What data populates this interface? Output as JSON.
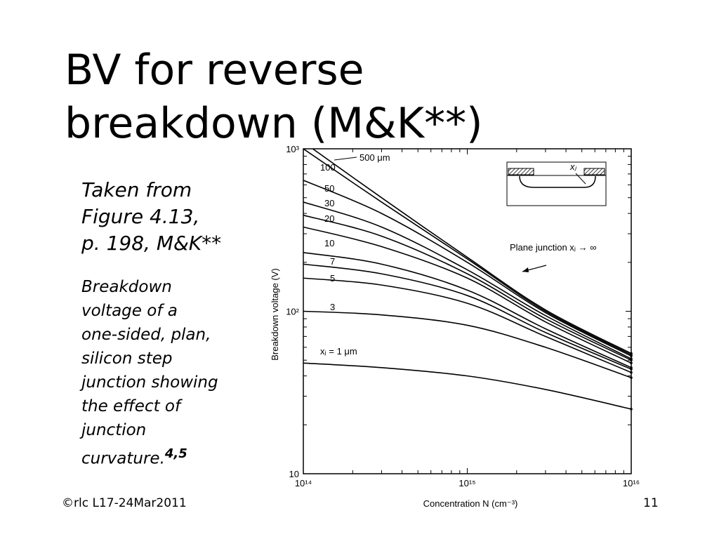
{
  "slide": {
    "title_lines": [
      "BV for reverse",
      "breakdown (M&K**)"
    ],
    "source_lines": [
      "Taken from",
      "Figure 4.13,",
      "p. 198, M&K**"
    ],
    "caption_lines": [
      "Breakdown",
      "voltage of a",
      "one-sided, plan,",
      "silicon step",
      "junction showing",
      "the effect of",
      "junction",
      "curvature."
    ],
    "caption_refs": "4,5",
    "footer_left": "©rlc L17-24Mar2011",
    "page_number": "11"
  },
  "chart_data": {
    "type": "line",
    "xlabel": "Concentration N (cm⁻³)",
    "ylabel": "Breakdown voltage (V)",
    "x_scale": "log",
    "y_scale": "log",
    "xlim": [
      100000000000000.0,
      1e+16
    ],
    "ylim": [
      10,
      1000
    ],
    "x_ticks": [
      "10¹⁴",
      "10¹⁵",
      "10¹⁶"
    ],
    "y_ticks": [
      "10",
      "10²",
      "10³"
    ],
    "x": [
      100000000000000.0,
      300000000000000.0,
      1000000000000000.0,
      3000000000000000.0,
      1e+16
    ],
    "series": [
      {
        "name": "500 μm",
        "values": [
          1000,
          470,
          210,
          100,
          54
        ]
      },
      {
        "name": "100",
        "values": [
          640,
          400,
          200,
          98,
          53
        ]
      },
      {
        "name": "50",
        "values": [
          470,
          330,
          180,
          94,
          51
        ]
      },
      {
        "name": "30",
        "values": [
          390,
          290,
          170,
          90,
          50
        ]
      },
      {
        "name": "20",
        "values": [
          330,
          250,
          160,
          86,
          48
        ]
      },
      {
        "name": "10",
        "values": [
          230,
          195,
          135,
          78,
          45
        ]
      },
      {
        "name": "7",
        "values": [
          195,
          170,
          125,
          74,
          44
        ]
      },
      {
        "name": "5",
        "values": [
          160,
          145,
          112,
          70,
          42
        ]
      },
      {
        "name": "3",
        "values": [
          100,
          95,
          82,
          60,
          39
        ]
      },
      {
        "name": "xⱼ = 1 μm",
        "values": [
          48,
          45,
          40,
          33,
          25
        ]
      },
      {
        "name": "Plane junction xⱼ → ∞",
        "values": [
          1100,
          500,
          215,
          102,
          55
        ]
      }
    ],
    "inset": {
      "label": "xⱼ"
    },
    "grid": false
  }
}
